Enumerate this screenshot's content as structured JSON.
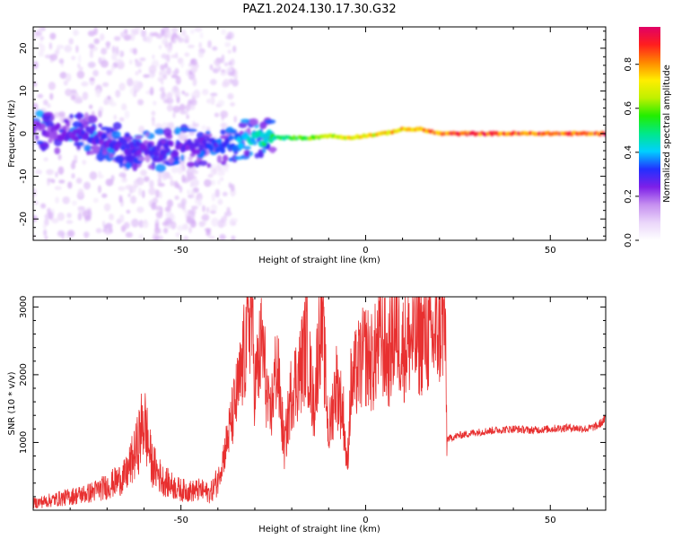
{
  "title": "PAZ1.2024.130.17.30.G32",
  "colors": {
    "snr_line": "#e83030",
    "background": "#ffffff",
    "colormap": [
      "#ffffff",
      "#ead6fa",
      "#c690f0",
      "#7d1fe8",
      "#2230ff",
      "#00d0ff",
      "#00e88a",
      "#22ee00",
      "#bff000",
      "#ffee00",
      "#ff8800",
      "#ff1e1e",
      "#e00066"
    ]
  },
  "chart_data": [
    {
      "type": "heatmap",
      "title": "",
      "xlabel": "Height of straight line (km)",
      "ylabel": "Frequency (Hz)",
      "xlim": [
        -90,
        65
      ],
      "ylim": [
        -25,
        25
      ],
      "xticks": [
        -50,
        0,
        50
      ],
      "yticks": [
        -20,
        -10,
        0,
        10,
        20
      ],
      "colorbar": {
        "label": "Normalized spectral amplitude",
        "range": [
          0,
          0.97
        ],
        "ticks": [
          "0.0",
          "0.2",
          "0.4",
          "0.6",
          "0.8"
        ]
      },
      "ridge": {
        "x": [
          -88,
          -80,
          -75,
          -70,
          -65,
          -60,
          -55,
          -50,
          -45,
          -40,
          -35,
          -30,
          -25,
          -20,
          -15,
          -10,
          -5,
          0,
          5,
          10,
          15,
          20,
          30,
          40,
          50,
          60,
          65
        ],
        "frequency_hz": [
          1,
          0,
          0,
          -2,
          -3,
          -4,
          -4,
          -3,
          -3,
          -3,
          -2,
          -1,
          -1,
          -1,
          -1,
          -0.5,
          -1,
          -0.5,
          0,
          1,
          1,
          0,
          0,
          0,
          0,
          0,
          0
        ],
        "amplitude": [
          0.25,
          0.28,
          0.3,
          0.3,
          0.32,
          0.3,
          0.3,
          0.28,
          0.3,
          0.35,
          0.4,
          0.5,
          0.55,
          0.6,
          0.65,
          0.7,
          0.75,
          0.78,
          0.8,
          0.85,
          0.9,
          0.92,
          0.95,
          0.95,
          0.95,
          0.95,
          0.95
        ]
      }
    },
    {
      "type": "line",
      "title": "",
      "xlabel": "Height of straight line (km)",
      "ylabel": "SNR (10 * v/v)",
      "xlim": [
        -90,
        65
      ],
      "ylim": [
        0,
        3150
      ],
      "xticks": [
        -50,
        0,
        50
      ],
      "yticks": [
        1000,
        2000,
        3000
      ],
      "series": [
        {
          "x": [
            -90,
            -85,
            -80,
            -75,
            -70,
            -65,
            -62,
            -60,
            -58,
            -55,
            -52,
            -50,
            -47,
            -45,
            -42,
            -40,
            -38,
            -36,
            -34,
            -32,
            -31,
            -30,
            -28,
            -26,
            -24,
            -22,
            -20,
            -18,
            -16,
            -14,
            -12,
            -10,
            -8,
            -6,
            -5,
            -4,
            -2,
            0,
            2,
            4,
            6,
            8,
            10,
            12,
            14,
            16,
            18,
            20,
            21,
            21.5,
            22,
            25,
            30,
            35,
            40,
            45,
            50,
            55,
            60,
            63,
            65
          ],
          "y": [
            100,
            150,
            200,
            250,
            350,
            500,
            900,
            1350,
            700,
            450,
            350,
            300,
            280,
            300,
            250,
            450,
            900,
            1400,
            1900,
            2600,
            3100,
            1800,
            2500,
            1300,
            2200,
            900,
            1800,
            2000,
            2500,
            1500,
            3000,
            1100,
            1900,
            1400,
            600,
            1800,
            2100,
            2300,
            2150,
            2600,
            2200,
            2700,
            2400,
            2500,
            2500,
            2600,
            2500,
            2700,
            2800,
            2750,
            1050,
            1100,
            1150,
            1180,
            1200,
            1180,
            1200,
            1220,
            1200,
            1250,
            1350
          ]
        }
      ]
    }
  ]
}
